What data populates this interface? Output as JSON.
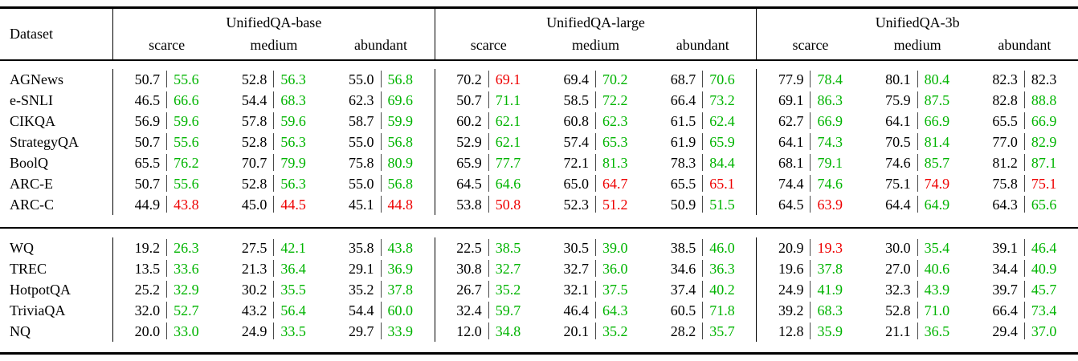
{
  "colors": {
    "gain": "#00b400",
    "loss": "#ee0000",
    "neutral": "#000000"
  },
  "header": {
    "dataset": "Dataset",
    "groups": [
      {
        "label": "UnifiedQA-base",
        "subcols": [
          "scarce",
          "medium",
          "abundant"
        ]
      },
      {
        "label": "UnifiedQA-large",
        "subcols": [
          "scarce",
          "medium",
          "abundant"
        ]
      },
      {
        "label": "UnifiedQA-3b",
        "subcols": [
          "scarce",
          "medium",
          "abundant"
        ]
      }
    ]
  },
  "sections": [
    {
      "rows": [
        {
          "dataset": "AGNews",
          "cells": [
            [
              "50.7",
              "55.6",
              "gain"
            ],
            [
              "52.8",
              "56.3",
              "gain"
            ],
            [
              "55.0",
              "56.8",
              "gain"
            ],
            [
              "70.2",
              "69.1",
              "loss"
            ],
            [
              "69.4",
              "70.2",
              "gain"
            ],
            [
              "68.7",
              "70.6",
              "gain"
            ],
            [
              "77.9",
              "78.4",
              "gain"
            ],
            [
              "80.1",
              "80.4",
              "gain"
            ],
            [
              "82.3",
              "82.3",
              "neutral"
            ]
          ]
        },
        {
          "dataset": "e-SNLI",
          "cells": [
            [
              "46.5",
              "66.6",
              "gain"
            ],
            [
              "54.4",
              "68.3",
              "gain"
            ],
            [
              "62.3",
              "69.6",
              "gain"
            ],
            [
              "50.7",
              "71.1",
              "gain"
            ],
            [
              "58.5",
              "72.2",
              "gain"
            ],
            [
              "66.4",
              "73.2",
              "gain"
            ],
            [
              "69.1",
              "86.3",
              "gain"
            ],
            [
              "75.9",
              "87.5",
              "gain"
            ],
            [
              "82.8",
              "88.8",
              "gain"
            ]
          ]
        },
        {
          "dataset": "CIKQA",
          "cells": [
            [
              "56.9",
              "59.6",
              "gain"
            ],
            [
              "57.8",
              "59.6",
              "gain"
            ],
            [
              "58.7",
              "59.9",
              "gain"
            ],
            [
              "60.2",
              "62.1",
              "gain"
            ],
            [
              "60.8",
              "62.3",
              "gain"
            ],
            [
              "61.5",
              "62.4",
              "gain"
            ],
            [
              "62.7",
              "66.9",
              "gain"
            ],
            [
              "64.1",
              "66.9",
              "gain"
            ],
            [
              "65.5",
              "66.9",
              "gain"
            ]
          ]
        },
        {
          "dataset": "StrategyQA",
          "cells": [
            [
              "50.7",
              "55.6",
              "gain"
            ],
            [
              "52.8",
              "56.3",
              "gain"
            ],
            [
              "55.0",
              "56.8",
              "gain"
            ],
            [
              "52.9",
              "62.1",
              "gain"
            ],
            [
              "57.4",
              "65.3",
              "gain"
            ],
            [
              "61.9",
              "65.9",
              "gain"
            ],
            [
              "64.1",
              "74.3",
              "gain"
            ],
            [
              "70.5",
              "81.4",
              "gain"
            ],
            [
              "77.0",
              "82.9",
              "gain"
            ]
          ]
        },
        {
          "dataset": "BoolQ",
          "cells": [
            [
              "65.5",
              "76.2",
              "gain"
            ],
            [
              "70.7",
              "79.9",
              "gain"
            ],
            [
              "75.8",
              "80.9",
              "gain"
            ],
            [
              "65.9",
              "77.7",
              "gain"
            ],
            [
              "72.1",
              "81.3",
              "gain"
            ],
            [
              "78.3",
              "84.4",
              "gain"
            ],
            [
              "68.1",
              "79.1",
              "gain"
            ],
            [
              "74.6",
              "85.7",
              "gain"
            ],
            [
              "81.2",
              "87.1",
              "gain"
            ]
          ]
        },
        {
          "dataset": "ARC-E",
          "cells": [
            [
              "50.7",
              "55.6",
              "gain"
            ],
            [
              "52.8",
              "56.3",
              "gain"
            ],
            [
              "55.0",
              "56.8",
              "gain"
            ],
            [
              "64.5",
              "64.6",
              "gain"
            ],
            [
              "65.0",
              "64.7",
              "loss"
            ],
            [
              "65.5",
              "65.1",
              "loss"
            ],
            [
              "74.4",
              "74.6",
              "gain"
            ],
            [
              "75.1",
              "74.9",
              "loss"
            ],
            [
              "75.8",
              "75.1",
              "loss"
            ]
          ]
        },
        {
          "dataset": "ARC-C",
          "cells": [
            [
              "44.9",
              "43.8",
              "loss"
            ],
            [
              "45.0",
              "44.5",
              "loss"
            ],
            [
              "45.1",
              "44.8",
              "loss"
            ],
            [
              "53.8",
              "50.8",
              "loss"
            ],
            [
              "52.3",
              "51.2",
              "loss"
            ],
            [
              "50.9",
              "51.5",
              "gain"
            ],
            [
              "64.5",
              "63.9",
              "loss"
            ],
            [
              "64.4",
              "64.9",
              "gain"
            ],
            [
              "64.3",
              "65.6",
              "gain"
            ]
          ]
        }
      ]
    },
    {
      "rows": [
        {
          "dataset": "WQ",
          "cells": [
            [
              "19.2",
              "26.3",
              "gain"
            ],
            [
              "27.5",
              "42.1",
              "gain"
            ],
            [
              "35.8",
              "43.8",
              "gain"
            ],
            [
              "22.5",
              "38.5",
              "gain"
            ],
            [
              "30.5",
              "39.0",
              "gain"
            ],
            [
              "38.5",
              "46.0",
              "gain"
            ],
            [
              "20.9",
              "19.3",
              "loss"
            ],
            [
              "30.0",
              "35.4",
              "gain"
            ],
            [
              "39.1",
              "46.4",
              "gain"
            ]
          ]
        },
        {
          "dataset": "TREC",
          "cells": [
            [
              "13.5",
              "33.6",
              "gain"
            ],
            [
              "21.3",
              "36.4",
              "gain"
            ],
            [
              "29.1",
              "36.9",
              "gain"
            ],
            [
              "30.8",
              "32.7",
              "gain"
            ],
            [
              "32.7",
              "36.0",
              "gain"
            ],
            [
              "34.6",
              "36.3",
              "gain"
            ],
            [
              "19.6",
              "37.8",
              "gain"
            ],
            [
              "27.0",
              "40.6",
              "gain"
            ],
            [
              "34.4",
              "40.9",
              "gain"
            ]
          ]
        },
        {
          "dataset": "HotpotQA",
          "cells": [
            [
              "25.2",
              "32.9",
              "gain"
            ],
            [
              "30.2",
              "35.5",
              "gain"
            ],
            [
              "35.2",
              "37.8",
              "gain"
            ],
            [
              "26.7",
              "35.2",
              "gain"
            ],
            [
              "32.1",
              "37.5",
              "gain"
            ],
            [
              "37.4",
              "40.2",
              "gain"
            ],
            [
              "24.9",
              "41.9",
              "gain"
            ],
            [
              "32.3",
              "43.9",
              "gain"
            ],
            [
              "39.7",
              "45.7",
              "gain"
            ]
          ]
        },
        {
          "dataset": "TriviaQA",
          "cells": [
            [
              "32.0",
              "52.7",
              "gain"
            ],
            [
              "43.2",
              "56.4",
              "gain"
            ],
            [
              "54.4",
              "60.0",
              "gain"
            ],
            [
              "32.4",
              "59.7",
              "gain"
            ],
            [
              "46.4",
              "64.3",
              "gain"
            ],
            [
              "60.5",
              "71.8",
              "gain"
            ],
            [
              "39.2",
              "68.3",
              "gain"
            ],
            [
              "52.8",
              "71.0",
              "gain"
            ],
            [
              "66.4",
              "73.4",
              "gain"
            ]
          ]
        },
        {
          "dataset": "NQ",
          "cells": [
            [
              "20.0",
              "33.0",
              "gain"
            ],
            [
              "24.9",
              "33.5",
              "gain"
            ],
            [
              "29.7",
              "33.9",
              "gain"
            ],
            [
              "12.0",
              "34.8",
              "gain"
            ],
            [
              "20.1",
              "35.2",
              "gain"
            ],
            [
              "28.2",
              "35.7",
              "gain"
            ],
            [
              "12.8",
              "35.9",
              "gain"
            ],
            [
              "21.1",
              "36.5",
              "gain"
            ],
            [
              "29.4",
              "37.0",
              "gain"
            ]
          ]
        }
      ]
    }
  ]
}
